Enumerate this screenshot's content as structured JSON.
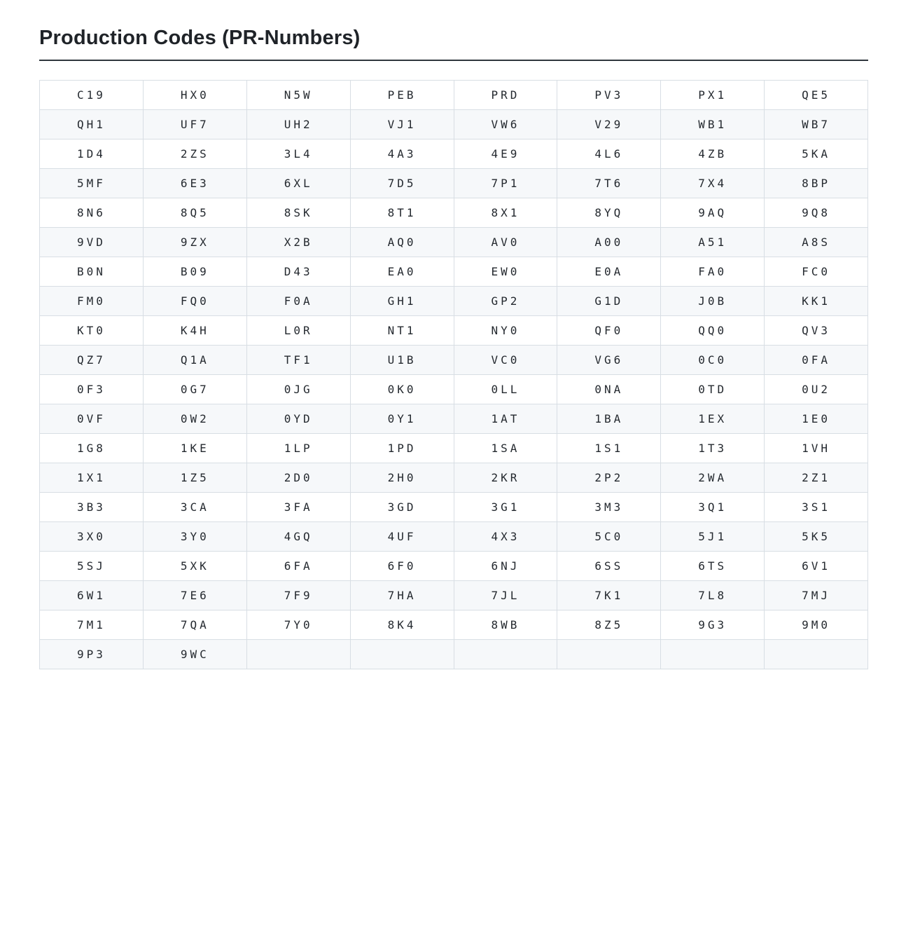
{
  "page": {
    "title": "Production Codes (PR-Numbers)"
  },
  "table": {
    "columns": 8,
    "rows": [
      [
        "C19",
        "HX0",
        "N5W",
        "PEB",
        "PRD",
        "PV3",
        "PX1",
        "QE5"
      ],
      [
        "QH1",
        "UF7",
        "UH2",
        "VJ1",
        "VW6",
        "V29",
        "WB1",
        "WB7"
      ],
      [
        "1D4",
        "2ZS",
        "3L4",
        "4A3",
        "4E9",
        "4L6",
        "4ZB",
        "5KA"
      ],
      [
        "5MF",
        "6E3",
        "6XL",
        "7D5",
        "7P1",
        "7T6",
        "7X4",
        "8BP"
      ],
      [
        "8N6",
        "8Q5",
        "8SK",
        "8T1",
        "8X1",
        "8YQ",
        "9AQ",
        "9Q8"
      ],
      [
        "9VD",
        "9ZX",
        "X2B",
        "AQ0",
        "AV0",
        "A00",
        "A51",
        "A8S"
      ],
      [
        "B0N",
        "B09",
        "D43",
        "EA0",
        "EW0",
        "E0A",
        "FA0",
        "FC0"
      ],
      [
        "FM0",
        "FQ0",
        "F0A",
        "GH1",
        "GP2",
        "G1D",
        "J0B",
        "KK1"
      ],
      [
        "KT0",
        "K4H",
        "L0R",
        "NT1",
        "NY0",
        "QF0",
        "QQ0",
        "QV3"
      ],
      [
        "QZ7",
        "Q1A",
        "TF1",
        "U1B",
        "VC0",
        "VG6",
        "0C0",
        "0FA"
      ],
      [
        "0F3",
        "0G7",
        "0JG",
        "0K0",
        "0LL",
        "0NA",
        "0TD",
        "0U2"
      ],
      [
        "0VF",
        "0W2",
        "0YD",
        "0Y1",
        "1AT",
        "1BA",
        "1EX",
        "1E0"
      ],
      [
        "1G8",
        "1KE",
        "1LP",
        "1PD",
        "1SA",
        "1S1",
        "1T3",
        "1VH"
      ],
      [
        "1X1",
        "1Z5",
        "2D0",
        "2H0",
        "2KR",
        "2P2",
        "2WA",
        "2Z1"
      ],
      [
        "3B3",
        "3CA",
        "3FA",
        "3GD",
        "3G1",
        "3M3",
        "3Q1",
        "3S1"
      ],
      [
        "3X0",
        "3Y0",
        "4GQ",
        "4UF",
        "4X3",
        "5C0",
        "5J1",
        "5K5"
      ],
      [
        "5SJ",
        "5XK",
        "6FA",
        "6F0",
        "6NJ",
        "6SS",
        "6TS",
        "6V1"
      ],
      [
        "6W1",
        "7E6",
        "7F9",
        "7HA",
        "7JL",
        "7K1",
        "7L8",
        "7MJ"
      ],
      [
        "7M1",
        "7QA",
        "7Y0",
        "8K4",
        "8WB",
        "8Z5",
        "9G3",
        "9M0"
      ],
      [
        "9P3",
        "9WC",
        "",
        "",
        "",
        "",
        "",
        ""
      ]
    ]
  },
  "colors": {
    "page_bg": "#ffffff",
    "title_text": "#1f2328",
    "title_rule": "#2f363d",
    "cell_text": "#24292f",
    "cell_border": "#d8dee4",
    "row_alt_bg": "#f6f8fa"
  }
}
